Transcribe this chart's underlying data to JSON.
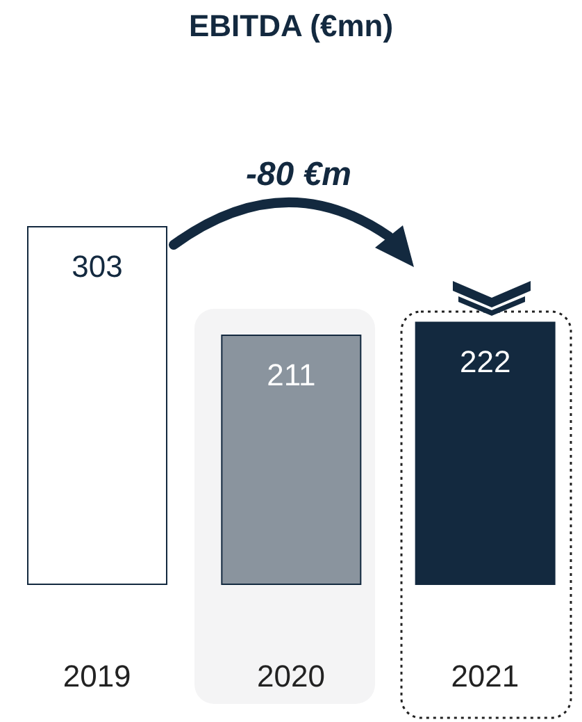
{
  "chart_data": {
    "type": "bar",
    "title": "EBITDA (€mn)",
    "categories": [
      "2019",
      "2020",
      "2021"
    ],
    "values": [
      303,
      211,
      222
    ],
    "colors": [
      "#ffffff",
      "#8a949e",
      "#13293f"
    ],
    "data_labels": true,
    "annotations": [
      "-80 €m"
    ]
  }
}
